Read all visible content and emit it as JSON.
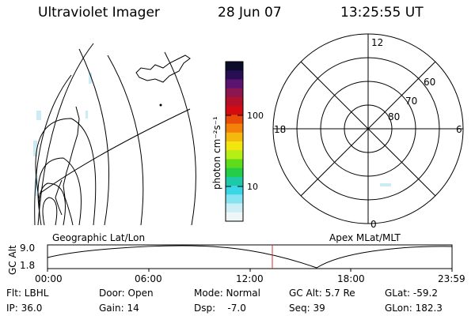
{
  "header": {
    "title": "Ultraviolet Imager",
    "date": "28 Jun 07",
    "time": "13:25:55 UT"
  },
  "colorbar": {
    "label": "photon cm⁻²s⁻¹",
    "ticks": [
      "100",
      "10"
    ],
    "colors": [
      "#0b0b2a",
      "#2a0e55",
      "#5a1370",
      "#8c1650",
      "#b4102a",
      "#d40c12",
      "#ea4a0a",
      "#f2800a",
      "#f5b80c",
      "#f1e610",
      "#b6ee15",
      "#5edc1c",
      "#25cc48",
      "#1ec9a8",
      "#3ad6e6",
      "#86e4f2",
      "#cceff6",
      "#eef6f8"
    ]
  },
  "polar_plot": {
    "mlt_labels": {
      "top": "12",
      "left": "18",
      "right": "6",
      "bottom": "0"
    },
    "lat_labels": [
      "60",
      "70",
      "80"
    ]
  },
  "timeline": {
    "y_axis_title": "GC Alt",
    "y_ticks": [
      "9.0",
      "1.8"
    ],
    "left_title": "Geographic Lat/Lon",
    "right_title": "Apex MLat/MLT",
    "x_ticks": [
      "00:00",
      "06:00",
      "12:00",
      "18:00",
      "23:59"
    ],
    "marker_time": "13:25:55",
    "marker_color": "#d03030"
  },
  "info": {
    "filter": "Flt: LBHL",
    "ip": "IP: 36.0",
    "door": "Door: Open",
    "gain": "Gain: 14",
    "mode": "Mode: Normal",
    "dsp": "Dsp:    -7.0",
    "gc_alt": "GC Alt: 5.7 Re",
    "seq": "Seq: 39",
    "glat": "GLat: -59.2",
    "glon": "GLon: 182.3"
  }
}
